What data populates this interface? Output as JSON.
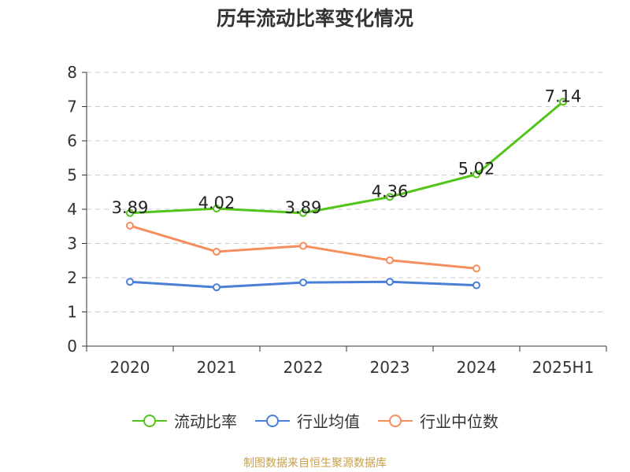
{
  "chart_data": {
    "type": "line",
    "title": "历年流动比率变化情况",
    "categories": [
      "2020",
      "2021",
      "2022",
      "2023",
      "2024",
      "2025H1"
    ],
    "ylim": [
      0,
      8
    ],
    "yticks": [
      0,
      1,
      2,
      3,
      4,
      5,
      6,
      7,
      8
    ],
    "grid": true,
    "legend_position": "bottom",
    "series": [
      {
        "name": "流动比率",
        "color": "#52c41a",
        "values": [
          3.89,
          4.02,
          3.89,
          4.36,
          5.02,
          7.14
        ],
        "labels": [
          "3.89",
          "4.02",
          "3.89",
          "4.36",
          "5.02",
          "7.14"
        ]
      },
      {
        "name": "行业均值",
        "color": "#4a7fd8",
        "values": [
          1.88,
          1.72,
          1.86,
          1.88,
          1.78,
          null
        ]
      },
      {
        "name": "行业中位数",
        "color": "#f68d5c",
        "values": [
          3.52,
          2.76,
          2.93,
          2.51,
          2.27,
          null
        ]
      }
    ]
  },
  "footer": {
    "source": "制图数据来自恒生聚源数据库"
  }
}
